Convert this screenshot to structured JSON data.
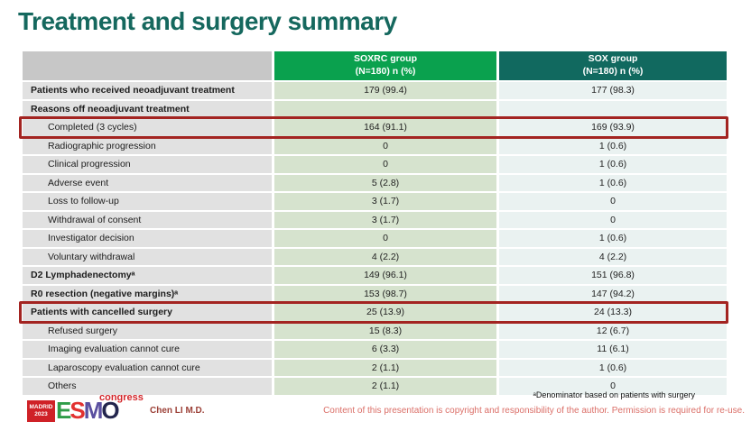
{
  "slide": {
    "title": "Treatment and surgery summary"
  },
  "table": {
    "columns": [
      {
        "label": "",
        "sublabel": ""
      },
      {
        "label": "SOXRC group",
        "sublabel": "(N=180)  n (%)"
      },
      {
        "label": "SOX group",
        "sublabel": "(N=180)  n (%)"
      }
    ],
    "rows": [
      {
        "label": "Patients who received neoadjuvant treatment",
        "bold": true,
        "indent": false,
        "soxrc": "179 (99.4)",
        "sox": "177 (98.3)",
        "highlight": false
      },
      {
        "label": "Reasons off neoadjuvant treatment",
        "bold": true,
        "indent": false,
        "soxrc": "",
        "sox": "",
        "highlight": false
      },
      {
        "label": "Completed (3 cycles)",
        "bold": false,
        "indent": true,
        "soxrc": "164 (91.1)",
        "sox": "169 (93.9)",
        "highlight": true
      },
      {
        "label": "Radiographic progression",
        "bold": false,
        "indent": true,
        "soxrc": "0",
        "sox": "1 (0.6)",
        "highlight": false
      },
      {
        "label": "Clinical progression",
        "bold": false,
        "indent": true,
        "soxrc": "0",
        "sox": "1 (0.6)",
        "highlight": false
      },
      {
        "label": "Adverse event",
        "bold": false,
        "indent": true,
        "soxrc": "5 (2.8)",
        "sox": "1 (0.6)",
        "highlight": false
      },
      {
        "label": "Loss to follow-up",
        "bold": false,
        "indent": true,
        "soxrc": "3 (1.7)",
        "sox": "0",
        "highlight": false
      },
      {
        "label": "Withdrawal of consent",
        "bold": false,
        "indent": true,
        "soxrc": "3 (1.7)",
        "sox": "0",
        "highlight": false
      },
      {
        "label": "Investigator decision",
        "bold": false,
        "indent": true,
        "soxrc": "0",
        "sox": "1 (0.6)",
        "highlight": false
      },
      {
        "label": "Voluntary withdrawal",
        "bold": false,
        "indent": true,
        "soxrc": "4 (2.2)",
        "sox": "4 (2.2)",
        "highlight": false
      },
      {
        "label": "D2 Lymphadenectomyᵃ",
        "bold": true,
        "indent": false,
        "soxrc": "149 (96.1)",
        "sox": "151 (96.8)",
        "highlight": false
      },
      {
        "label": "R0 resection (negative margins)ᵃ",
        "bold": true,
        "indent": false,
        "soxrc": "153 (98.7)",
        "sox": "147 (94.2)",
        "highlight": false
      },
      {
        "label": "Patients with cancelled surgery",
        "bold": true,
        "indent": false,
        "soxrc": "25 (13.9)",
        "sox": "24 (13.3)",
        "highlight": true
      },
      {
        "label": "Refused surgery",
        "bold": false,
        "indent": true,
        "soxrc": "15 (8.3)",
        "sox": "12 (6.7)",
        "highlight": false
      },
      {
        "label": "Imaging evaluation cannot cure",
        "bold": false,
        "indent": true,
        "soxrc": "6 (3.3)",
        "sox": "11 (6.1)",
        "highlight": false
      },
      {
        "label": "Laparoscopy evaluation cannot cure",
        "bold": false,
        "indent": true,
        "soxrc": "2 (1.1)",
        "sox": "1 (0.6)",
        "highlight": false
      },
      {
        "label": "Others",
        "bold": false,
        "indent": true,
        "soxrc": "2 (1.1)",
        "sox": "0",
        "highlight": false
      }
    ]
  },
  "footer": {
    "logo": {
      "madrid_city": "MADRID",
      "madrid_year": "2023",
      "letters": [
        {
          "char": "E"
        },
        {
          "char": "S"
        },
        {
          "char": "M"
        },
        {
          "char": "O"
        }
      ],
      "congress": "congress"
    },
    "author": "Chen LI M.D.",
    "footnote": "ᵃDenominator based on patients with surgery",
    "copyright": "Content of this presentation is copyright and responsibility of the author. Permission is required for re-use."
  },
  "colors": {
    "title_teal": "#15685E",
    "header_green": "#0AA14E",
    "header_teal": "#11695F",
    "header_gray": "#C7C7C7",
    "label_cell_gray": "#E1E1E1",
    "soxrc_cell_green": "#D6E3CE",
    "sox_cell_teal": "#EAF2F1",
    "highlight_red": "#A32421",
    "copyright_pink": "#DB6F68",
    "author_maroon": "#9C4138",
    "logo_red": "#CF2127"
  }
}
